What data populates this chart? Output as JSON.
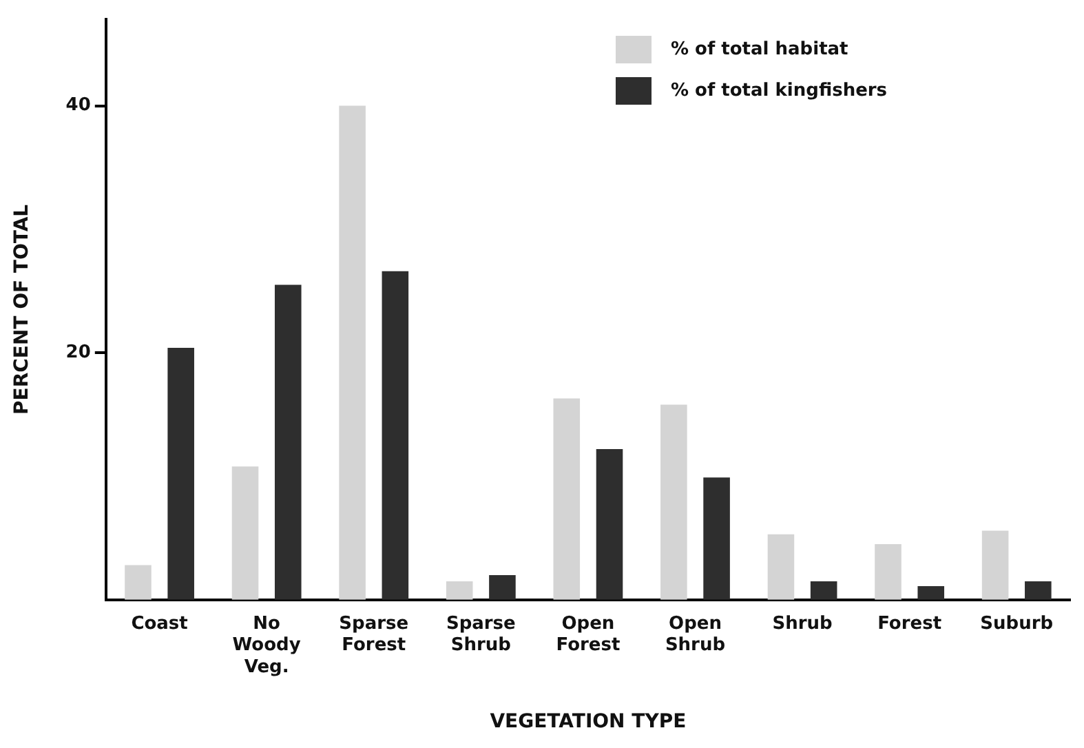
{
  "chart_data": {
    "type": "bar",
    "xlabel": "VEGETATION TYPE",
    "ylabel": "PERCENT OF TOTAL",
    "categories": [
      "Coast",
      "No Woody Veg.",
      "Sparse Forest",
      "Sparse Shrub",
      "Open Forest",
      "Open Shrub",
      "Shrub",
      "Forest",
      "Suburb"
    ],
    "series": [
      {
        "name": "% of total habitat",
        "color": "#d4d4d4",
        "values": [
          2.8,
          10.8,
          40,
          1.5,
          16.3,
          15.8,
          5.3,
          4.5,
          5.6
        ]
      },
      {
        "name": "% of total kingfishers",
        "color": "#2e2e2e",
        "values": [
          20.4,
          25.5,
          26.6,
          2.0,
          12.2,
          9.9,
          1.5,
          1.1,
          1.5
        ]
      }
    ],
    "ylim": [
      0,
      47
    ],
    "yticks": [
      20,
      40
    ],
    "grid": false,
    "legend": "top right"
  }
}
